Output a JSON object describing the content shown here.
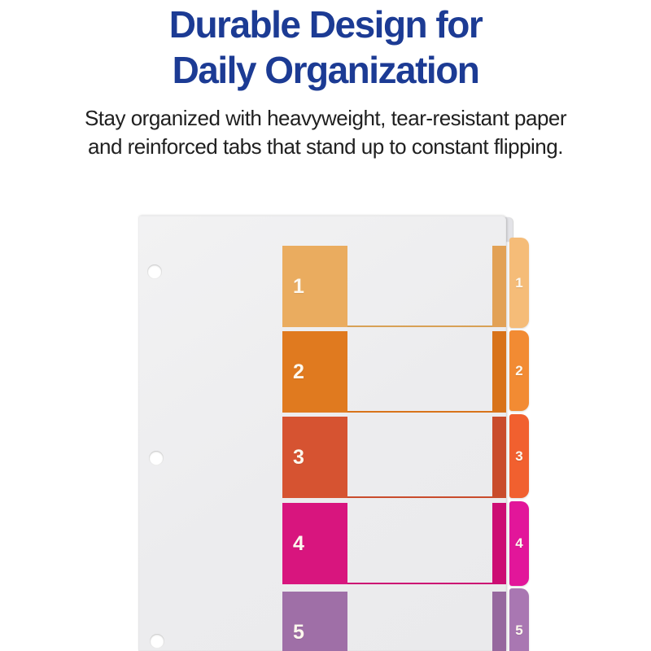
{
  "page": {
    "title": {
      "line1": "Durable Design for",
      "line2": "Daily Organization",
      "color": "#1C3B94"
    },
    "subtitle": {
      "line1": "Stay organized with heavyweight, tear-resistant paper",
      "line2": "and reinforced tabs that stand up to constant flipping.",
      "color": "#202020"
    }
  },
  "divider_set": {
    "description": "Table of contents sheet with five numbered color-coded rows and matching index tabs",
    "sheet_color": "#EDEDEF",
    "hole_count": 3,
    "rows": [
      {
        "label": "1",
        "block_color": "#EAAC5F",
        "strip_color": "#E2A155",
        "tab_color": "#F5BC78",
        "line_color": "#D8A156",
        "number_color": "#FDF8EE"
      },
      {
        "label": "2",
        "block_color": "#E07A1F",
        "strip_color": "#D8731A",
        "tab_color": "#F28B33",
        "line_color": "#D8731A",
        "number_color": "#FDF8EE"
      },
      {
        "label": "3",
        "block_color": "#D65331",
        "strip_color": "#C94C2C",
        "tab_color": "#F1602F",
        "line_color": "#C94C2C",
        "number_color": "#FDF8EE"
      },
      {
        "label": "4",
        "block_color": "#D8157E",
        "strip_color": "#CC0D73",
        "tab_color": "#E2169A",
        "line_color": "#CC0D73",
        "number_color": "#FDF8EE"
      },
      {
        "label": "5",
        "block_color": "#9F6FA7",
        "strip_color": "#96689E",
        "tab_color": "#A977B2",
        "line_color": "#96689E",
        "number_color": "#FDF8EE"
      }
    ]
  }
}
